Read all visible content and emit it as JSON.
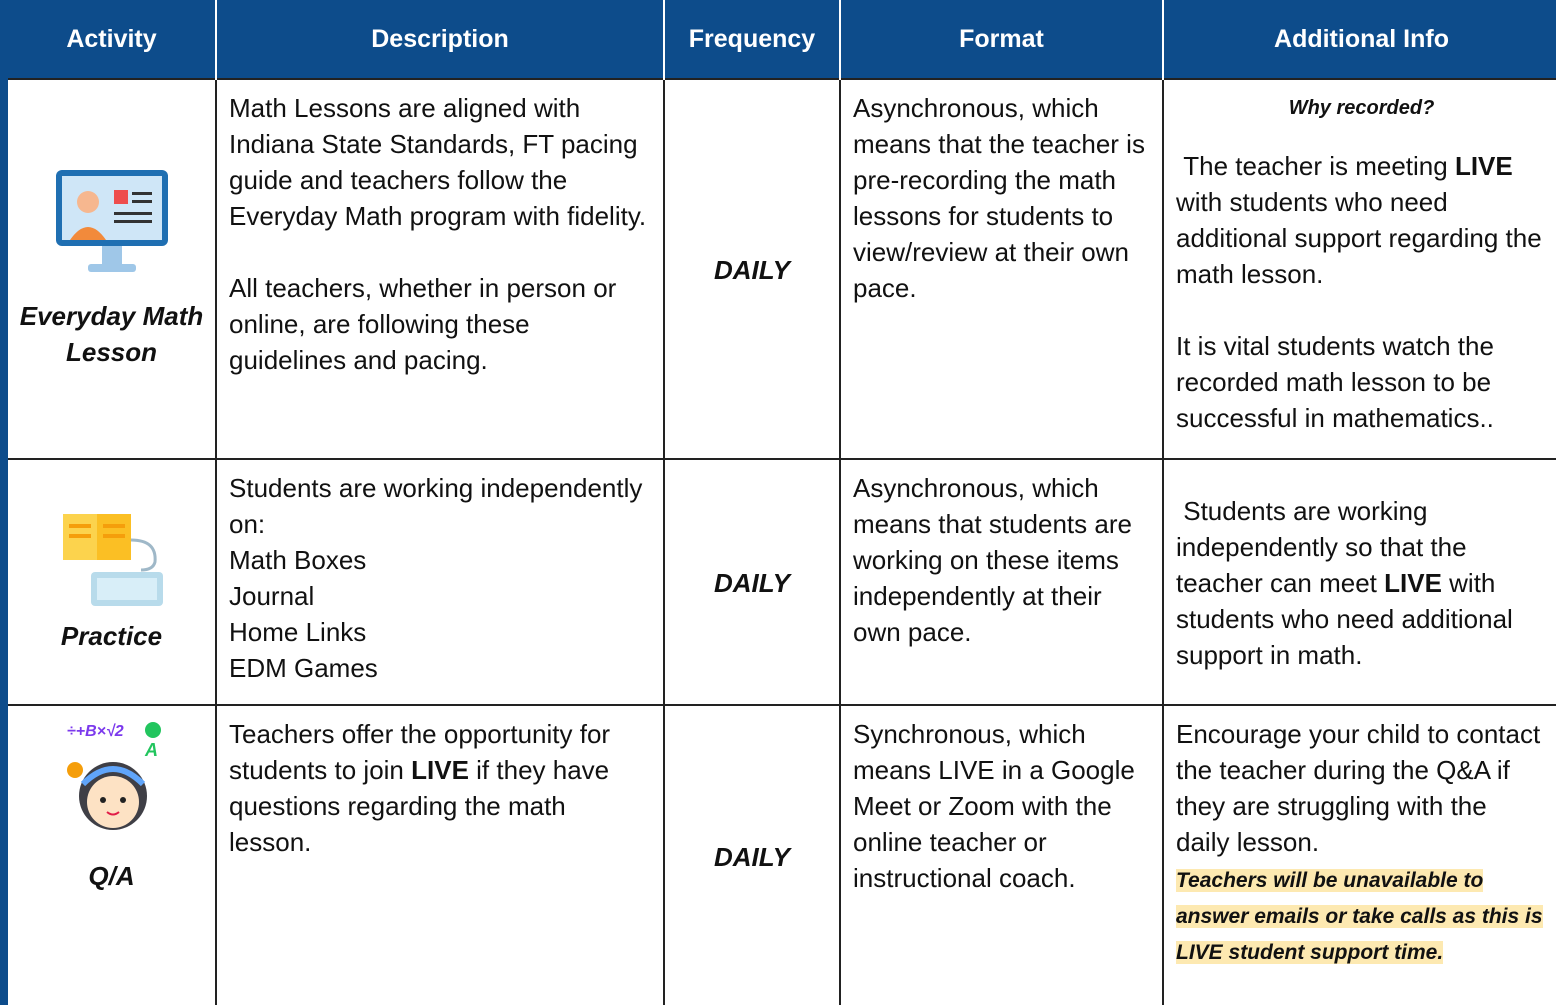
{
  "table": {
    "header": [
      "Activity",
      "Description",
      "Frequency",
      "Format",
      "Additional Info"
    ],
    "rows": [
      {
        "activity": "Everyday Math Lesson",
        "description": [
          "Math Lessons are aligned with Indiana State Standards, FT pacing guide and teachers follow the Everyday Math program with fidelity.",
          "All teachers, whether in person or online, are following these guidelines and pacing."
        ],
        "frequency": "DAILY",
        "format": "Asynchronous, which means that the teacher is pre-recording the math lessons for students to view/review at their own pace.",
        "additional_info": {
          "heading": "Why recorded?",
          "paragraphs": [
            [
              "The teacher is meeting",
              "LIVE",
              "with students who need additional support regarding the math lesson."
            ],
            [
              "It is vital students watch the recorded math lesson to be successful in mathematics.."
            ]
          ]
        }
      },
      {
        "activity": "Practice",
        "description": [
          "Students are working independently on:",
          "Math Boxes",
          "Journal",
          "Home Links",
          "EDM Games"
        ],
        "frequency": "DAILY",
        "format": "Asynchronous, which means that students are working on these items independently at their own pace.",
        "additional_info": {
          "paragraphs": [
            [
              "Students are working independently so that the teacher can meet",
              "LIVE",
              "with students who need additional support in math."
            ]
          ]
        }
      },
      {
        "activity": "Q/A",
        "description": [
          [
            "Teachers offer the opportunity for students to join",
            "LIVE",
            "if they have questions regarding the math lesson."
          ]
        ],
        "frequency": "DAILY",
        "format": "Synchronous, which means LIVE in a Google Meet or Zoom with the online teacher or instructional coach.",
        "additional_info": {
          "paragraphs": [
            [
              "Encourage your child to contact the teacher during the Q&A if they are struggling with the daily lesson."
            ]
          ],
          "note": "Teachers will be unavailable to answer emails or take calls as this is LIVE student support time."
        }
      }
    ]
  }
}
